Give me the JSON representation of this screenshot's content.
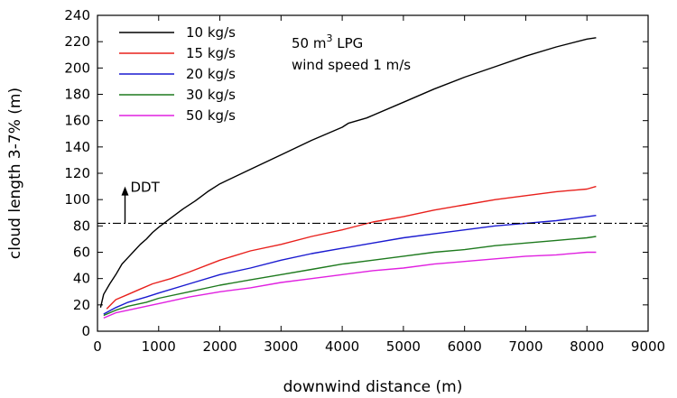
{
  "chart_data": {
    "type": "line",
    "xlabel": "downwind distance (m)",
    "ylabel": "cloud length 3-7% (m)",
    "xlim": [
      0,
      9000
    ],
    "ylim": [
      0,
      240
    ],
    "xticks": [
      0,
      1000,
      2000,
      3000,
      4000,
      5000,
      6000,
      7000,
      8000,
      9000
    ],
    "yticks": [
      0,
      20,
      40,
      60,
      80,
      100,
      120,
      140,
      160,
      180,
      200,
      220,
      240
    ],
    "grid": false,
    "legend": "top-left",
    "annotations": {
      "case_line1_prefix": "50 m",
      "case_line1_sup": "3",
      "case_line1_suffix": " LPG",
      "case_line2": "wind speed 1 m/s",
      "ddt_label": "DDT",
      "ddt_level": 82,
      "ddt_arrow_x": 450,
      "ddt_arrow_from": 82,
      "ddt_arrow_to": 110
    },
    "series": [
      {
        "name": "10 kg/s",
        "color": "#000000",
        "x": [
          50,
          100,
          200,
          300,
          400,
          500,
          600,
          700,
          800,
          900,
          1000,
          1200,
          1400,
          1600,
          1800,
          2000,
          2500,
          3000,
          3500,
          4000,
          4100,
          4400,
          5000,
          5500,
          6000,
          6500,
          7000,
          7500,
          8000,
          8150
        ],
        "y": [
          18,
          28,
          36,
          43,
          51,
          56,
          61,
          66,
          70,
          75,
          79,
          86,
          93,
          99,
          106,
          112,
          123,
          134,
          145,
          155,
          158,
          162,
          174,
          184,
          193,
          201,
          209,
          216,
          222,
          223
        ]
      },
      {
        "name": "15 kg/s",
        "color": "#e8201c",
        "x": [
          150,
          300,
          500,
          700,
          900,
          1200,
          1500,
          2000,
          2500,
          3000,
          3500,
          4000,
          4500,
          5000,
          5500,
          6000,
          6500,
          7000,
          7500,
          8000,
          8150
        ],
        "y": [
          17,
          24,
          28,
          32,
          36,
          40,
          45,
          54,
          61,
          66,
          72,
          77,
          83,
          87,
          92,
          96,
          100,
          103,
          106,
          108,
          110
        ]
      },
      {
        "name": "20 kg/s",
        "color": "#1a1ad0",
        "x": [
          100,
          300,
          500,
          800,
          1000,
          1500,
          2000,
          2500,
          3000,
          3500,
          4000,
          4500,
          5000,
          5500,
          6000,
          6500,
          7000,
          7500,
          8000,
          8150
        ],
        "y": [
          13,
          18,
          22,
          26,
          29,
          36,
          43,
          48,
          54,
          59,
          63,
          67,
          71,
          74,
          77,
          80,
          82,
          84,
          87,
          88
        ]
      },
      {
        "name": "30 kg/s",
        "color": "#1e7a1e",
        "x": [
          100,
          300,
          500,
          800,
          1000,
          1500,
          2000,
          2500,
          3000,
          3500,
          4000,
          4500,
          5000,
          5500,
          6000,
          6500,
          7000,
          7500,
          8000,
          8150
        ],
        "y": [
          12,
          16,
          19,
          22,
          25,
          30,
          35,
          39,
          43,
          47,
          51,
          54,
          57,
          60,
          62,
          65,
          67,
          69,
          71,
          72
        ]
      },
      {
        "name": "50 kg/s",
        "color": "#e020e0",
        "x": [
          100,
          300,
          500,
          800,
          1000,
          1500,
          2000,
          2500,
          3000,
          3500,
          4000,
          4500,
          5000,
          5500,
          6000,
          6500,
          7000,
          7500,
          8000,
          8150
        ],
        "y": [
          10,
          14,
          16,
          19,
          21,
          26,
          30,
          33,
          37,
          40,
          43,
          46,
          48,
          51,
          53,
          55,
          57,
          58,
          60,
          60
        ]
      }
    ]
  }
}
